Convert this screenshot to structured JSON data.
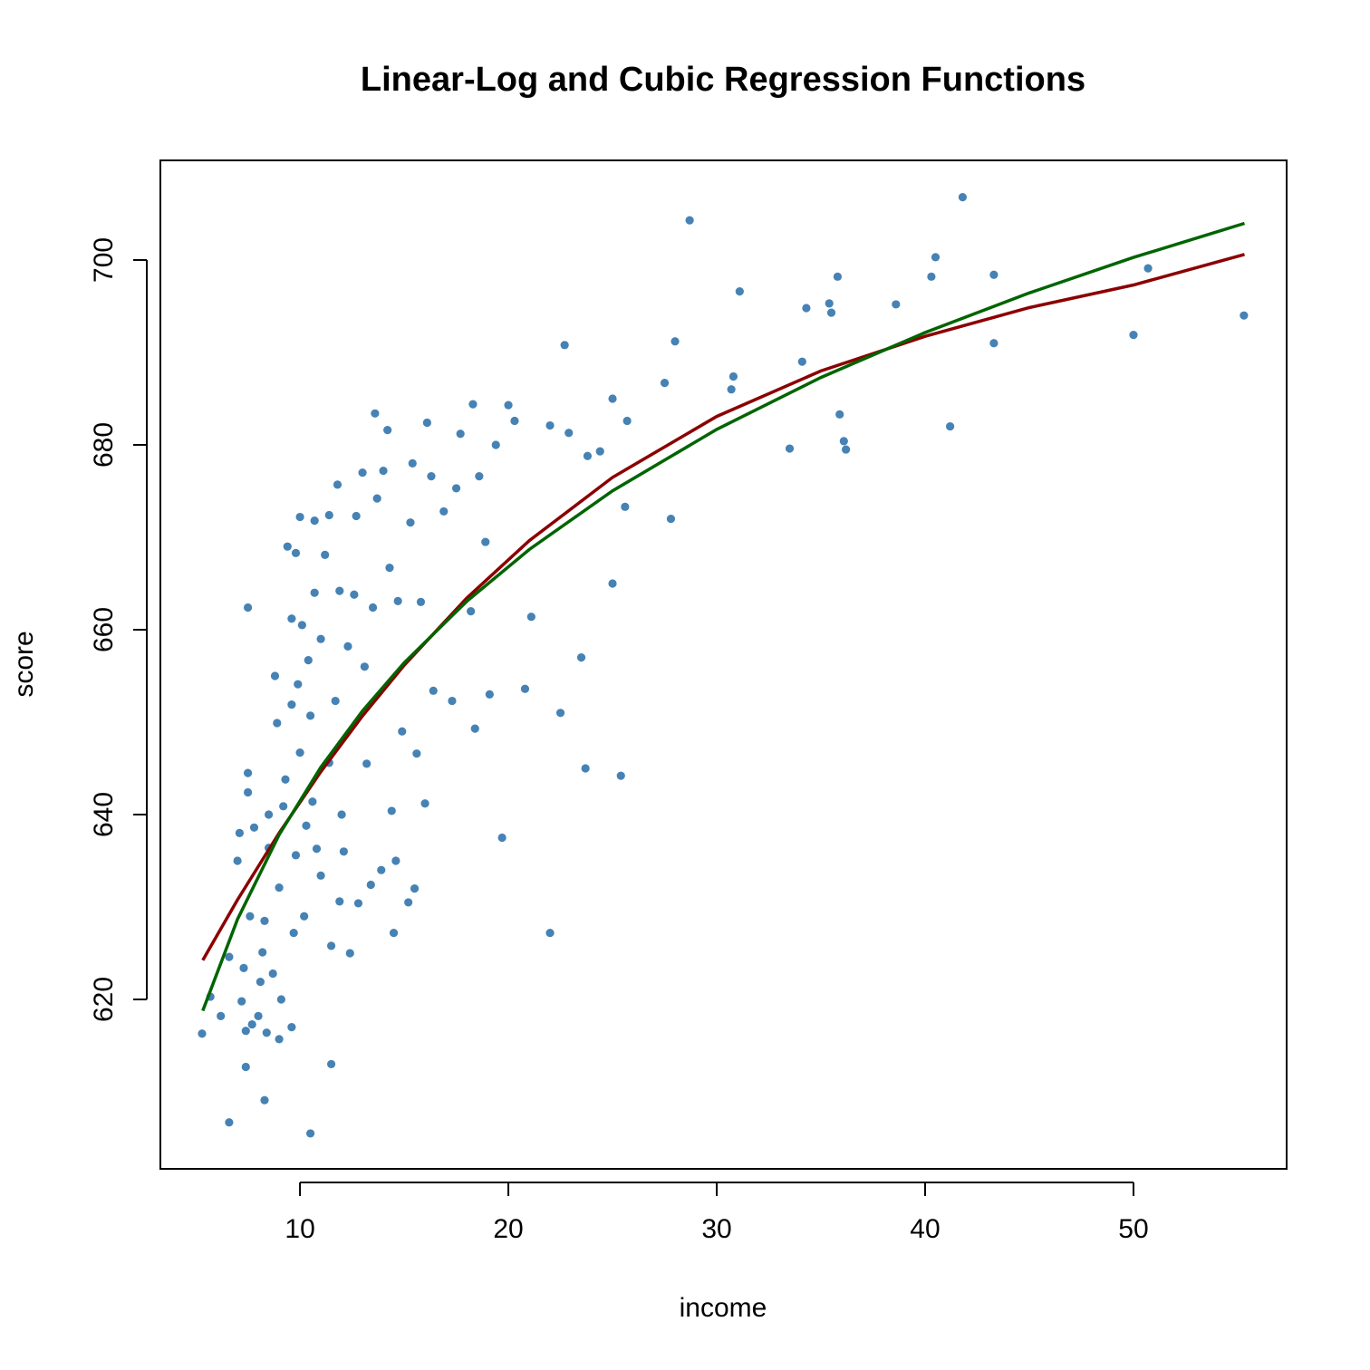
{
  "chart_data": {
    "type": "scatter",
    "title": "Linear-Log and Cubic Regression Functions",
    "x_label": "income",
    "y_label": "score",
    "xlim": [
      3.3,
      57.35
    ],
    "ylim": [
      601.67,
      710.78
    ],
    "xticks": [
      10,
      20,
      30,
      40,
      50
    ],
    "yticks": [
      620,
      640,
      660,
      680,
      700
    ],
    "series": [
      {
        "mode": "markers",
        "color": "#4682b4",
        "x": [
          5.3,
          5.7,
          6.2,
          6.6,
          6.6,
          7.0,
          7.1,
          7.2,
          7.3,
          7.4,
          7.4,
          7.5,
          7.5,
          7.5,
          7.6,
          7.7,
          7.8,
          8.0,
          8.1,
          8.2,
          8.3,
          8.3,
          8.4,
          8.5,
          8.5,
          8.7,
          8.8,
          8.9,
          9.0,
          9.0,
          9.1,
          9.2,
          9.3,
          9.4,
          9.6,
          9.6,
          9.6,
          9.7,
          9.8,
          9.8,
          9.9,
          10.0,
          10.0,
          10.1,
          10.2,
          10.3,
          10.4,
          10.5,
          10.5,
          10.6,
          10.7,
          10.7,
          10.8,
          11.0,
          11.0,
          11.2,
          11.4,
          11.4,
          11.5,
          11.5,
          11.7,
          11.8,
          11.9,
          11.9,
          12.0,
          12.1,
          12.3,
          12.4,
          12.6,
          12.7,
          12.8,
          13.0,
          13.1,
          13.2,
          13.4,
          13.5,
          13.6,
          13.7,
          13.9,
          14.0,
          14.2,
          14.3,
          14.4,
          14.5,
          14.6,
          14.7,
          14.9,
          15.2,
          15.3,
          15.4,
          15.5,
          15.6,
          15.8,
          16.0,
          16.1,
          16.3,
          16.4,
          16.9,
          17.3,
          17.5,
          17.7,
          18.2,
          18.3,
          18.4,
          18.6,
          18.9,
          19.1,
          19.4,
          19.7,
          20.0,
          20.3,
          20.8,
          21.1,
          22.0,
          22.0,
          22.5,
          22.7,
          22.9,
          23.5,
          23.7,
          23.8,
          24.4,
          25.0,
          25.0,
          25.4,
          25.7,
          25.6,
          27.5,
          27.8,
          28.0,
          28.7,
          30.7,
          30.8,
          31.1,
          33.5,
          34.1,
          34.3,
          35.4,
          35.5,
          35.8,
          35.9,
          36.1,
          36.2,
          38.6,
          40.3,
          40.5,
          41.2,
          41.8,
          43.3,
          43.3,
          50.0,
          50.7,
          55.3
        ],
        "values": [
          616.3,
          620.3,
          618.2,
          624.6,
          606.7,
          635,
          638,
          619.8,
          623.4,
          612.7,
          616.6,
          644.5,
          642.4,
          662.4,
          629,
          617.3,
          638.6,
          618.2,
          621.9,
          625.1,
          609.1,
          628.5,
          616.4,
          640,
          636.4,
          622.8,
          655,
          649.9,
          615.7,
          632.1,
          620,
          640.9,
          643.8,
          669,
          617,
          661.2,
          651.9,
          627.2,
          635.6,
          668.3,
          654.1,
          672.2,
          646.7,
          660.5,
          629,
          638.8,
          656.7,
          605.5,
          650.7,
          641.4,
          671.8,
          664,
          636.3,
          659,
          633.4,
          668.1,
          672.4,
          645.6,
          625.8,
          613,
          652.3,
          675.7,
          630.6,
          664.2,
          640,
          636,
          658.2,
          625,
          663.8,
          672.3,
          630.4,
          677,
          656,
          645.5,
          632.4,
          662.4,
          683.4,
          674.2,
          634,
          677.2,
          681.6,
          666.7,
          640.4,
          627.2,
          635,
          663.1,
          649,
          630.5,
          671.6,
          678,
          632,
          646.6,
          663,
          641.2,
          682.4,
          676.6,
          653.4,
          672.8,
          652.3,
          675.3,
          681.2,
          662,
          684.4,
          649.3,
          676.6,
          669.5,
          653,
          680,
          637.5,
          684.3,
          682.6,
          653.6,
          661.4,
          627.2,
          682.1,
          651,
          690.8,
          681.3,
          657,
          645,
          678.8,
          679.3,
          685,
          665,
          644.2,
          682.6,
          673.3,
          686.7,
          672,
          691.2,
          704.3,
          686,
          687.4,
          696.6,
          679.6,
          689,
          694.8,
          695.3,
          694.3,
          698.2,
          683.3,
          680.4,
          679.5,
          695.2,
          698.2,
          700.3,
          682,
          706.8,
          698.4,
          691,
          691.9,
          699.1,
          694
        ]
      },
      {
        "mode": "line",
        "color": "#8b0000",
        "x": [
          5.335,
          7,
          9,
          11,
          13,
          15,
          18,
          21,
          25,
          30,
          35,
          40,
          45,
          50,
          55.33
        ],
        "values": [
          624.25,
          630.78,
          638.01,
          644.64,
          650.68,
          656.16,
          663.42,
          669.64,
          676.48,
          683.08,
          688.0,
          691.74,
          694.85,
          697.3,
          700.6
        ]
      },
      {
        "mode": "line",
        "color": "#006400",
        "x": [
          5.335,
          7,
          9,
          11,
          13,
          15,
          18,
          21,
          25,
          30,
          35,
          40,
          45,
          50,
          55.33
        ],
        "values": [
          618.78,
          628.67,
          637.82,
          645.13,
          651.22,
          656.43,
          663.07,
          668.68,
          675.03,
          681.67,
          687.29,
          692.15,
          696.44,
          700.28,
          703.97
        ]
      }
    ]
  }
}
